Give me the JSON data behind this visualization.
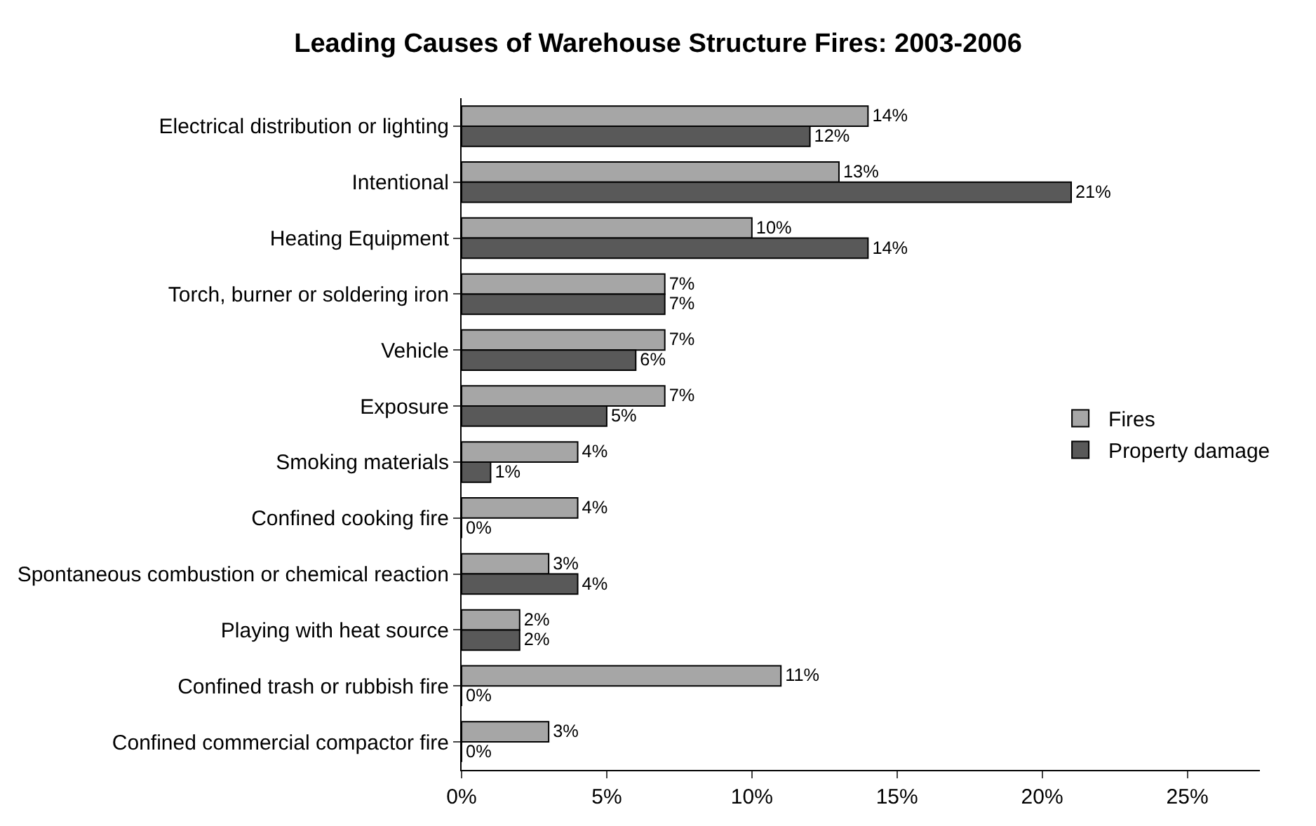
{
  "chart_data": {
    "type": "bar",
    "orientation": "horizontal",
    "title": "Leading Causes of Warehouse Structure Fires: 2003-2006",
    "categories": [
      "Electrical distribution or lighting",
      "Intentional",
      "Heating Equipment",
      "Torch, burner or soldering iron",
      "Vehicle",
      "Exposure",
      "Smoking materials",
      "Confined cooking fire",
      "Spontaneous combustion or chemical reaction",
      "Playing with heat source",
      "Confined trash or rubbish fire",
      "Confined commercial compactor fire"
    ],
    "series": [
      {
        "name": "Fires",
        "color": "#a6a6a6",
        "values": [
          14,
          13,
          10,
          7,
          7,
          7,
          4,
          4,
          3,
          2,
          11,
          3
        ],
        "value_labels": [
          "14%",
          "13%",
          "10%",
          "7%",
          "7%",
          "7%",
          "4%",
          "4%",
          "3%",
          "2%",
          "11%",
          "3%"
        ]
      },
      {
        "name": "Property damage",
        "color": "#595959",
        "values": [
          12,
          21,
          14,
          7,
          6,
          5,
          1,
          0,
          4,
          2,
          0,
          0
        ],
        "value_labels": [
          "12%",
          "21%",
          "14%",
          "7%",
          "6%",
          "5%",
          "1%",
          "0%",
          "4%",
          "2%",
          "0%",
          "0%"
        ]
      }
    ],
    "xlim": [
      0,
      27.5
    ],
    "xticks": [
      {
        "value": 0,
        "label": "0%"
      },
      {
        "value": 5,
        "label": "5%"
      },
      {
        "value": 10,
        "label": "10%"
      },
      {
        "value": 15,
        "label": "15%"
      },
      {
        "value": 20,
        "label": "20%"
      },
      {
        "value": 25,
        "label": "25%"
      }
    ],
    "legend": "right"
  }
}
